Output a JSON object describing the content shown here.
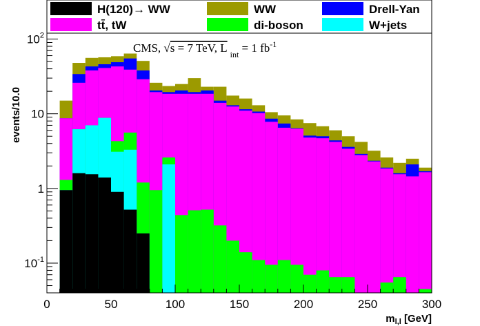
{
  "chart_data": {
    "type": "bar",
    "stacked": true,
    "bin_width": 10,
    "x_edges_start": 10,
    "xlabel_main": "m",
    "xlabel_sub": "l,l",
    "xlabel_unit": " [GeV]",
    "ylabel": "events/10.0",
    "xlim": [
      0,
      300
    ],
    "ylim": [
      0.04,
      120
    ],
    "yscale": "log",
    "x_ticks": [
      0,
      50,
      100,
      150,
      200,
      250,
      300
    ],
    "y_ticks": [
      {
        "value": 0.1,
        "base": "10",
        "exp": "-1"
      },
      {
        "value": 1,
        "base": "1",
        "exp": ""
      },
      {
        "value": 10,
        "base": "10",
        "exp": ""
      },
      {
        "value": 100,
        "base": "10",
        "exp": "2"
      }
    ],
    "annotation": {
      "main": "CMS, ",
      "sqrt": "√",
      "s_part": "s = 7 TeV, L",
      "sub": "int",
      "tail": " = 1 fb",
      "sup": "-1"
    },
    "legend": {
      "position": "top",
      "entries": [
        {
          "label": "H(120)→ WW",
          "color": "#000000"
        },
        {
          "label": "WW",
          "color": "#9c9a00"
        },
        {
          "label": "Drell-Yan",
          "color": "#0000ff"
        },
        {
          "label": "tt̄, tW",
          "color": "#ff00ff"
        },
        {
          "label": "di-boson",
          "color": "#00ff00"
        },
        {
          "label": "W+jets",
          "color": "#00ffff"
        }
      ]
    },
    "series": [
      {
        "name": "H(120)→ WW",
        "color": "#000000",
        "values": [
          0.95,
          1.6,
          1.55,
          1.4,
          0.9,
          0.52,
          0.25,
          0.04,
          0.04,
          0.04,
          0.04,
          0.04,
          0.04,
          0.04,
          0.04,
          0.04,
          0.04,
          0.04,
          0.04,
          0.04,
          0.04,
          0.04,
          0.04,
          0.04,
          0.04,
          0.04,
          0.04,
          0.04,
          0.04
        ]
      },
      {
        "name": "W+jets",
        "color": "#00ffff",
        "values": [
          0.95,
          6.2,
          7.0,
          8.8,
          3.1,
          3.3,
          0.25,
          0.04,
          2.1,
          0.04,
          0.04,
          0.04,
          0.04,
          0.04,
          0.04,
          0.04,
          0.04,
          0.04,
          0.04,
          0.04,
          0.04,
          0.04,
          0.04,
          0.04,
          0.04,
          0.04,
          0.04,
          0.04,
          0.04
        ]
      },
      {
        "name": "di-boson",
        "color": "#00ff00",
        "values": [
          1.3,
          6.2,
          7.0,
          8.8,
          4.3,
          5.6,
          1.2,
          0.95,
          2.6,
          0.44,
          0.51,
          0.52,
          0.32,
          0.2,
          0.14,
          0.11,
          0.095,
          0.11,
          0.095,
          0.07,
          0.08,
          0.065,
          0.065,
          0.04,
          0.04,
          0.055,
          0.065,
          0.04,
          0.045
        ]
      },
      {
        "name": "tt̄, tW",
        "color": "#ff00ff",
        "values": [
          8.7,
          26,
          38,
          41,
          43,
          39,
          29,
          19.5,
          18.5,
          18.5,
          18.5,
          18.5,
          14,
          12.5,
          11,
          10.2,
          7.8,
          6.5,
          6.3,
          4.8,
          4.7,
          4.2,
          3.4,
          2.8,
          2.3,
          1.85,
          1.55,
          1.45,
          1.65
        ]
      },
      {
        "name": "Drell-Yan",
        "color": "#0000ff",
        "values": [
          8.7,
          34,
          43,
          46,
          49,
          55,
          38,
          20.5,
          19.5,
          20.5,
          19.5,
          20.5,
          15,
          13,
          11.5,
          10.7,
          8.6,
          7.4,
          6.4,
          5.1,
          5.0,
          4.4,
          3.6,
          2.9,
          2.35,
          1.9,
          1.6,
          2.1,
          1.7
        ]
      },
      {
        "name": "WW",
        "color": "#9c9a00",
        "values": [
          15,
          48,
          56,
          57,
          59,
          64,
          51,
          26,
          23.5,
          25,
          30,
          23,
          23,
          17.5,
          16,
          13,
          10.5,
          9.5,
          8.4,
          7.5,
          6.8,
          6.0,
          5.0,
          4.2,
          3.2,
          2.6,
          2.2,
          2.5,
          1.9
        ]
      }
    ]
  }
}
